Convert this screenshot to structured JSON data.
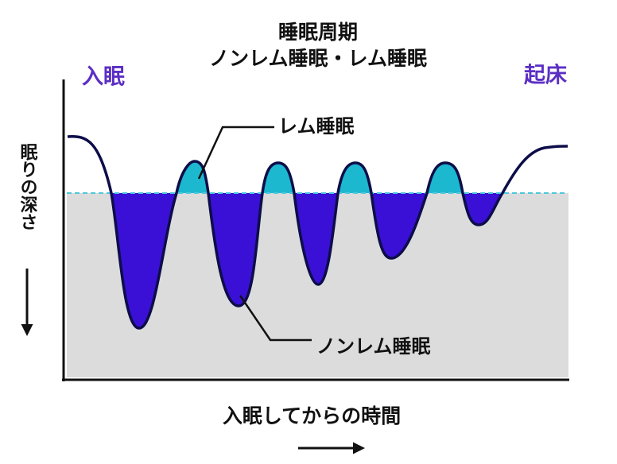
{
  "title": {
    "line1": "睡眠周期",
    "line2": "ノンレム睡眠・レム睡眠"
  },
  "start_label": "入眠",
  "end_label": "起床",
  "y_axis_label": "眠りの深さ",
  "x_axis_label": "入眠してからの時間",
  "rem_label": "レム睡眠",
  "nonrem_label": "ノンレム睡眠"
}
